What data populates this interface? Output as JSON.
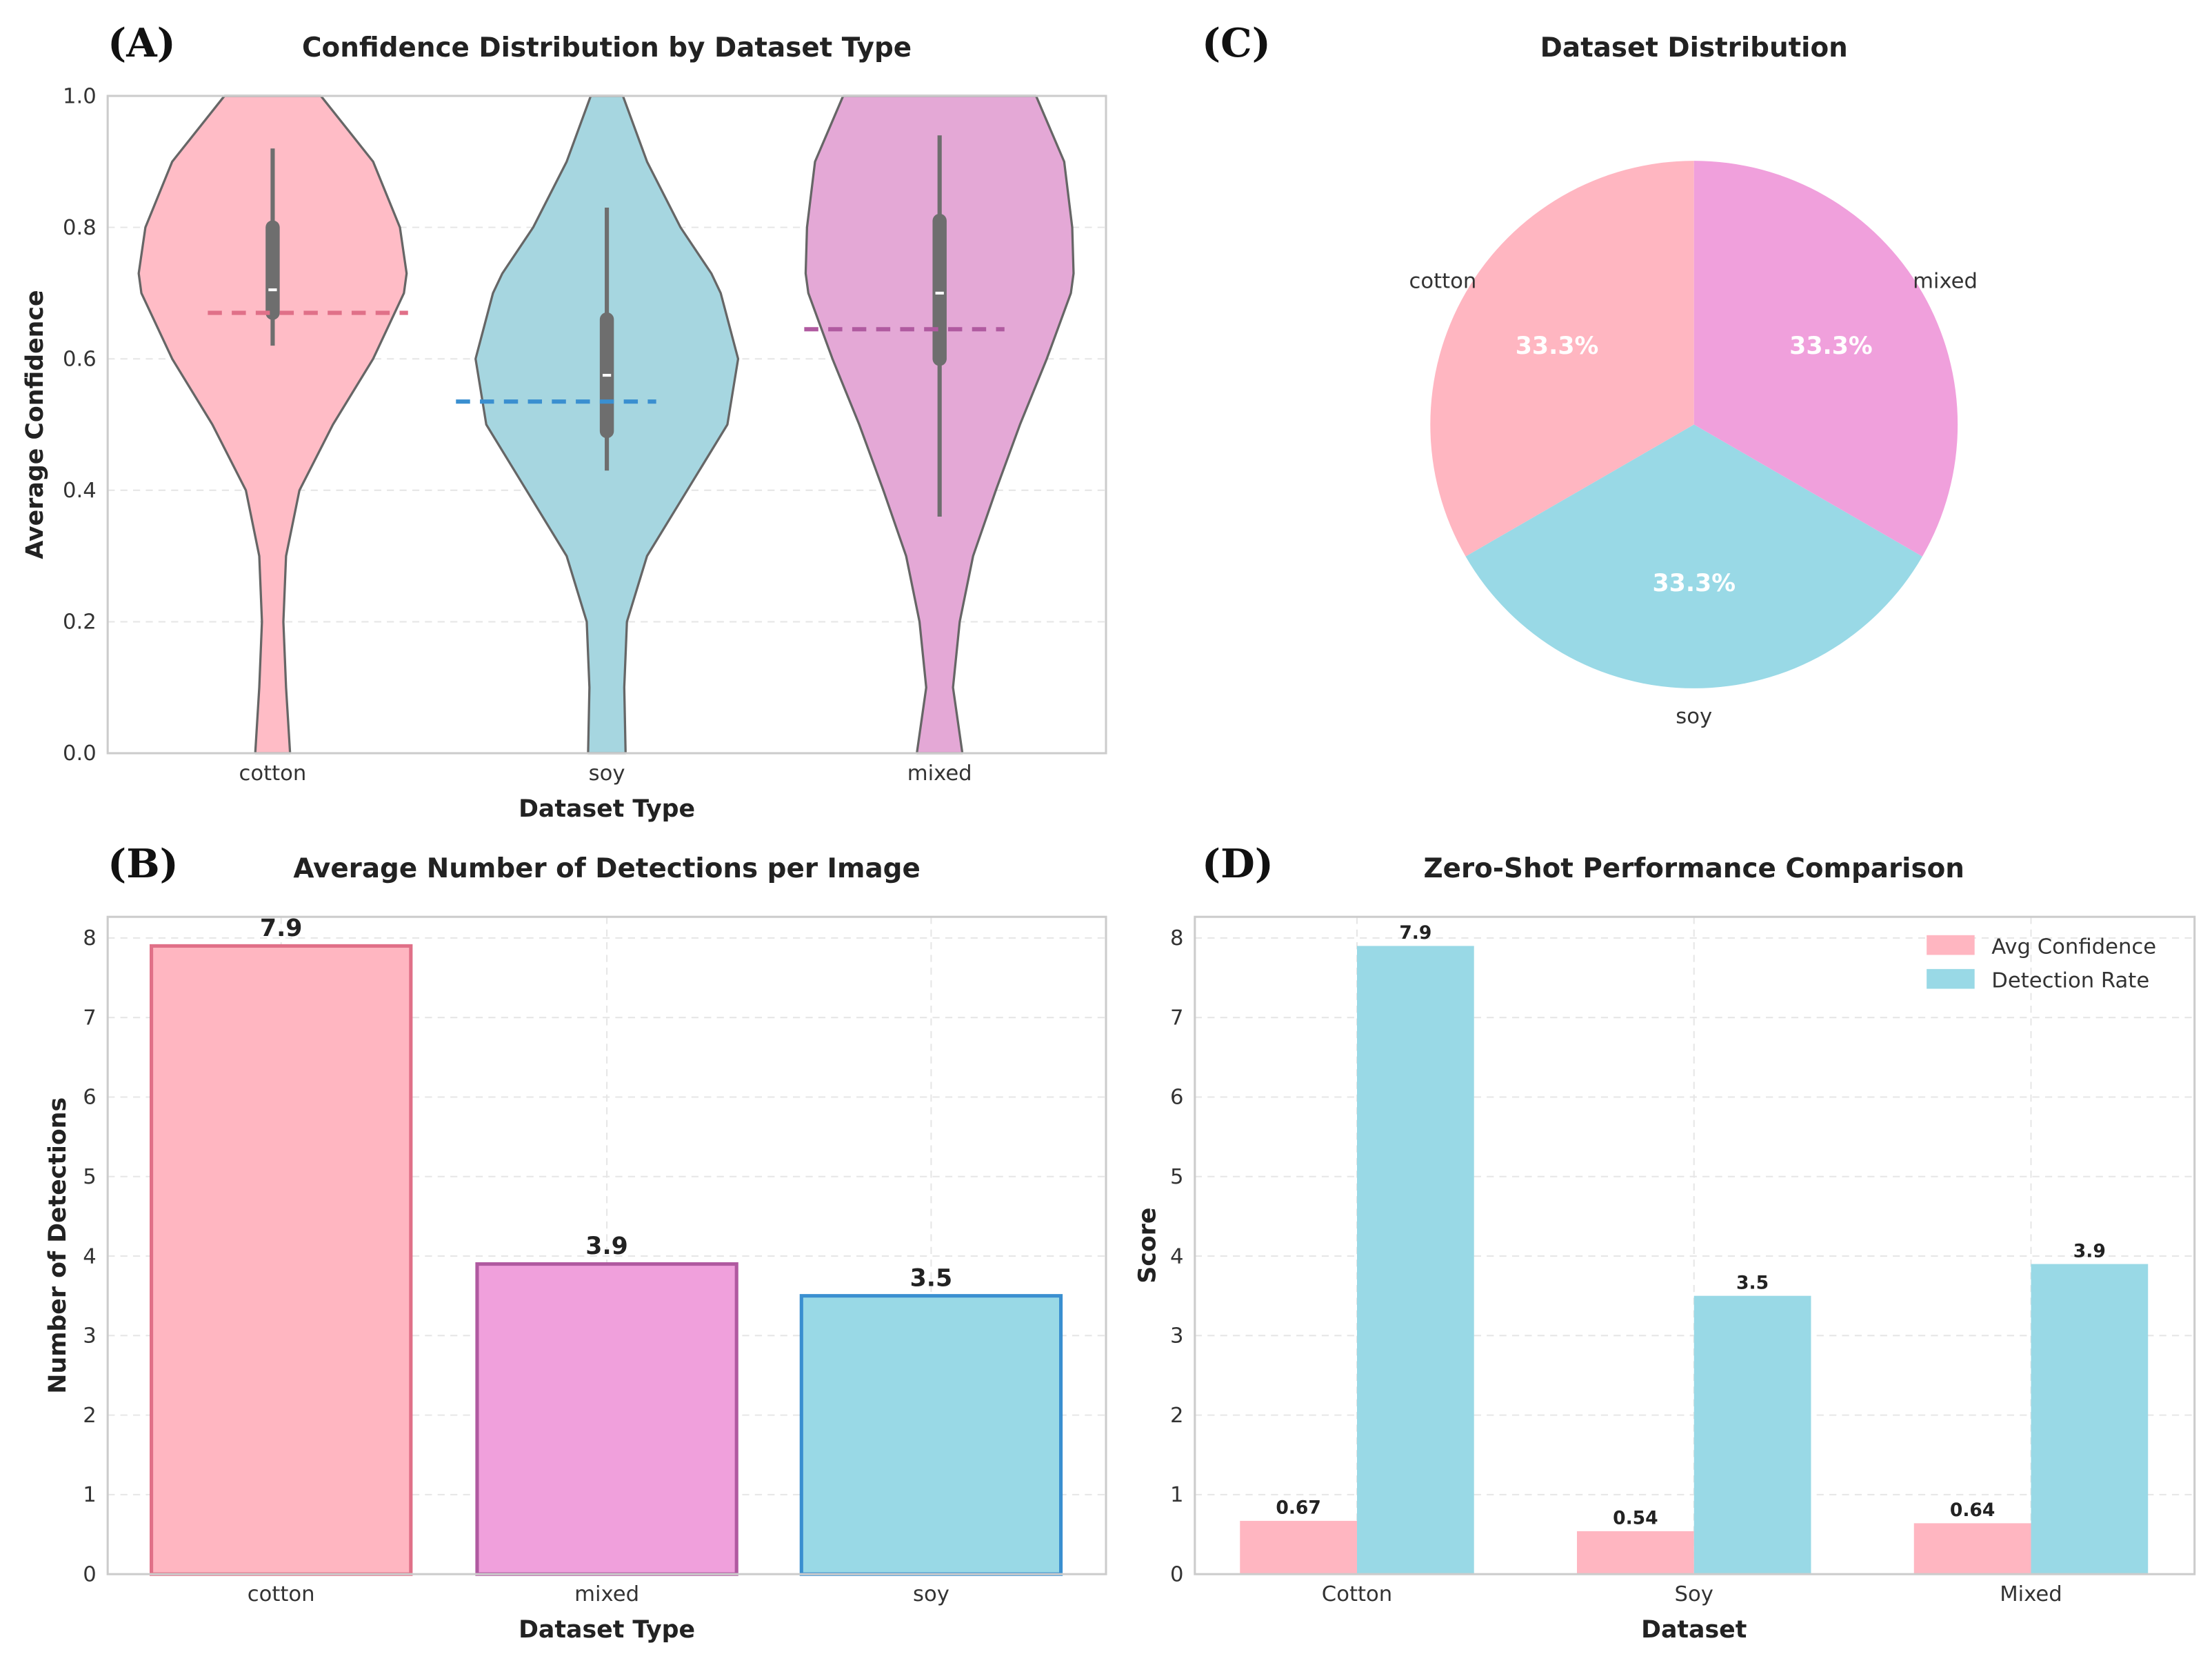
{
  "colors": {
    "cotton": "#ffb6c1",
    "soy": "#99d9e6",
    "mixed": "#f0a0dc",
    "cotton_edge": "#e07088",
    "soy_edge": "#3a8fd0",
    "mixed_edge": "#b05aa0",
    "violin_cotton": "#ffbcc6",
    "violin_soy": "#a6d6e0",
    "violin_mixed": "#e4a8d6"
  },
  "chart_data": [
    {
      "panel": "(A)",
      "type": "violin",
      "title": "Confidence Distribution by Dataset Type",
      "xlabel": "Dataset Type",
      "ylabel": "Average Confidence",
      "ylim": [
        0,
        1
      ],
      "yticks": [
        "0.0",
        "0.2",
        "0.4",
        "0.6",
        "0.8",
        "1.0"
      ],
      "grid": true,
      "categories": [
        "cotton",
        "soy",
        "mixed"
      ],
      "density_levels": [
        0,
        0.1,
        0.2,
        0.3,
        0.4,
        0.5,
        0.6,
        0.7,
        0.73,
        0.8,
        0.9,
        1.0
      ],
      "series": [
        {
          "name": "cotton",
          "density": [
            0.13,
            0.1,
            0.08,
            0.1,
            0.2,
            0.45,
            0.75,
            0.98,
            1,
            0.95,
            0.75,
            0.36
          ],
          "whisker": [
            0.62,
            0.92
          ],
          "box": [
            0.67,
            0.8
          ],
          "median": 0.705,
          "mean": 0.67
        },
        {
          "name": "soy",
          "density": [
            0.14,
            0.13,
            0.15,
            0.3,
            0.6,
            0.9,
            0.98,
            0.85,
            0.78,
            0.55,
            0.3,
            0.12
          ],
          "whisker": [
            0.43,
            0.83
          ],
          "box": [
            0.49,
            0.66
          ],
          "median": 0.575,
          "mean": 0.535
        },
        {
          "name": "mixed",
          "density": [
            0.17,
            0.1,
            0.15,
            0.25,
            0.42,
            0.6,
            0.8,
            0.98,
            1,
            0.99,
            0.93,
            0.72
          ],
          "whisker": [
            0.36,
            0.94
          ],
          "box": [
            0.6,
            0.81
          ],
          "median": 0.7,
          "mean": 0.645
        }
      ]
    },
    {
      "panel": "(B)",
      "type": "bar",
      "title": "Average Number of Detections per Image",
      "xlabel": "Dataset Type",
      "ylabel": "Number of Detections",
      "ylim": [
        0,
        8.3
      ],
      "yticks": [
        "0",
        "1",
        "2",
        "3",
        "4",
        "5",
        "6",
        "7",
        "8"
      ],
      "grid": true,
      "categories": [
        "cotton",
        "mixed",
        "soy"
      ],
      "values": [
        7.9,
        3.9,
        3.5
      ],
      "labels": [
        "7.9",
        "3.9",
        "3.5"
      ]
    },
    {
      "panel": "(C)",
      "type": "pie",
      "title": "Dataset Distribution",
      "categories": [
        "cotton",
        "soy",
        "mixed"
      ],
      "values": [
        33.3,
        33.3,
        33.3
      ],
      "labels": [
        "33.3%",
        "33.3%",
        "33.3%"
      ]
    },
    {
      "panel": "(D)",
      "type": "bar",
      "title": "Zero-Shot Performance Comparison",
      "xlabel": "Dataset",
      "ylabel": "Score",
      "ylim": [
        0,
        8.3
      ],
      "yticks": [
        "0",
        "1",
        "2",
        "3",
        "4",
        "5",
        "6",
        "7",
        "8"
      ],
      "grid": true,
      "legend": "top-right",
      "categories": [
        "Cotton",
        "Soy",
        "Mixed"
      ],
      "series": [
        {
          "name": "Avg Confidence",
          "values": [
            0.67,
            0.54,
            0.64
          ],
          "labels": [
            "0.67",
            "0.54",
            "0.64"
          ]
        },
        {
          "name": "Detection Rate",
          "values": [
            7.9,
            3.5,
            3.9
          ],
          "labels": [
            "7.9",
            "3.5",
            "3.9"
          ]
        }
      ]
    }
  ]
}
